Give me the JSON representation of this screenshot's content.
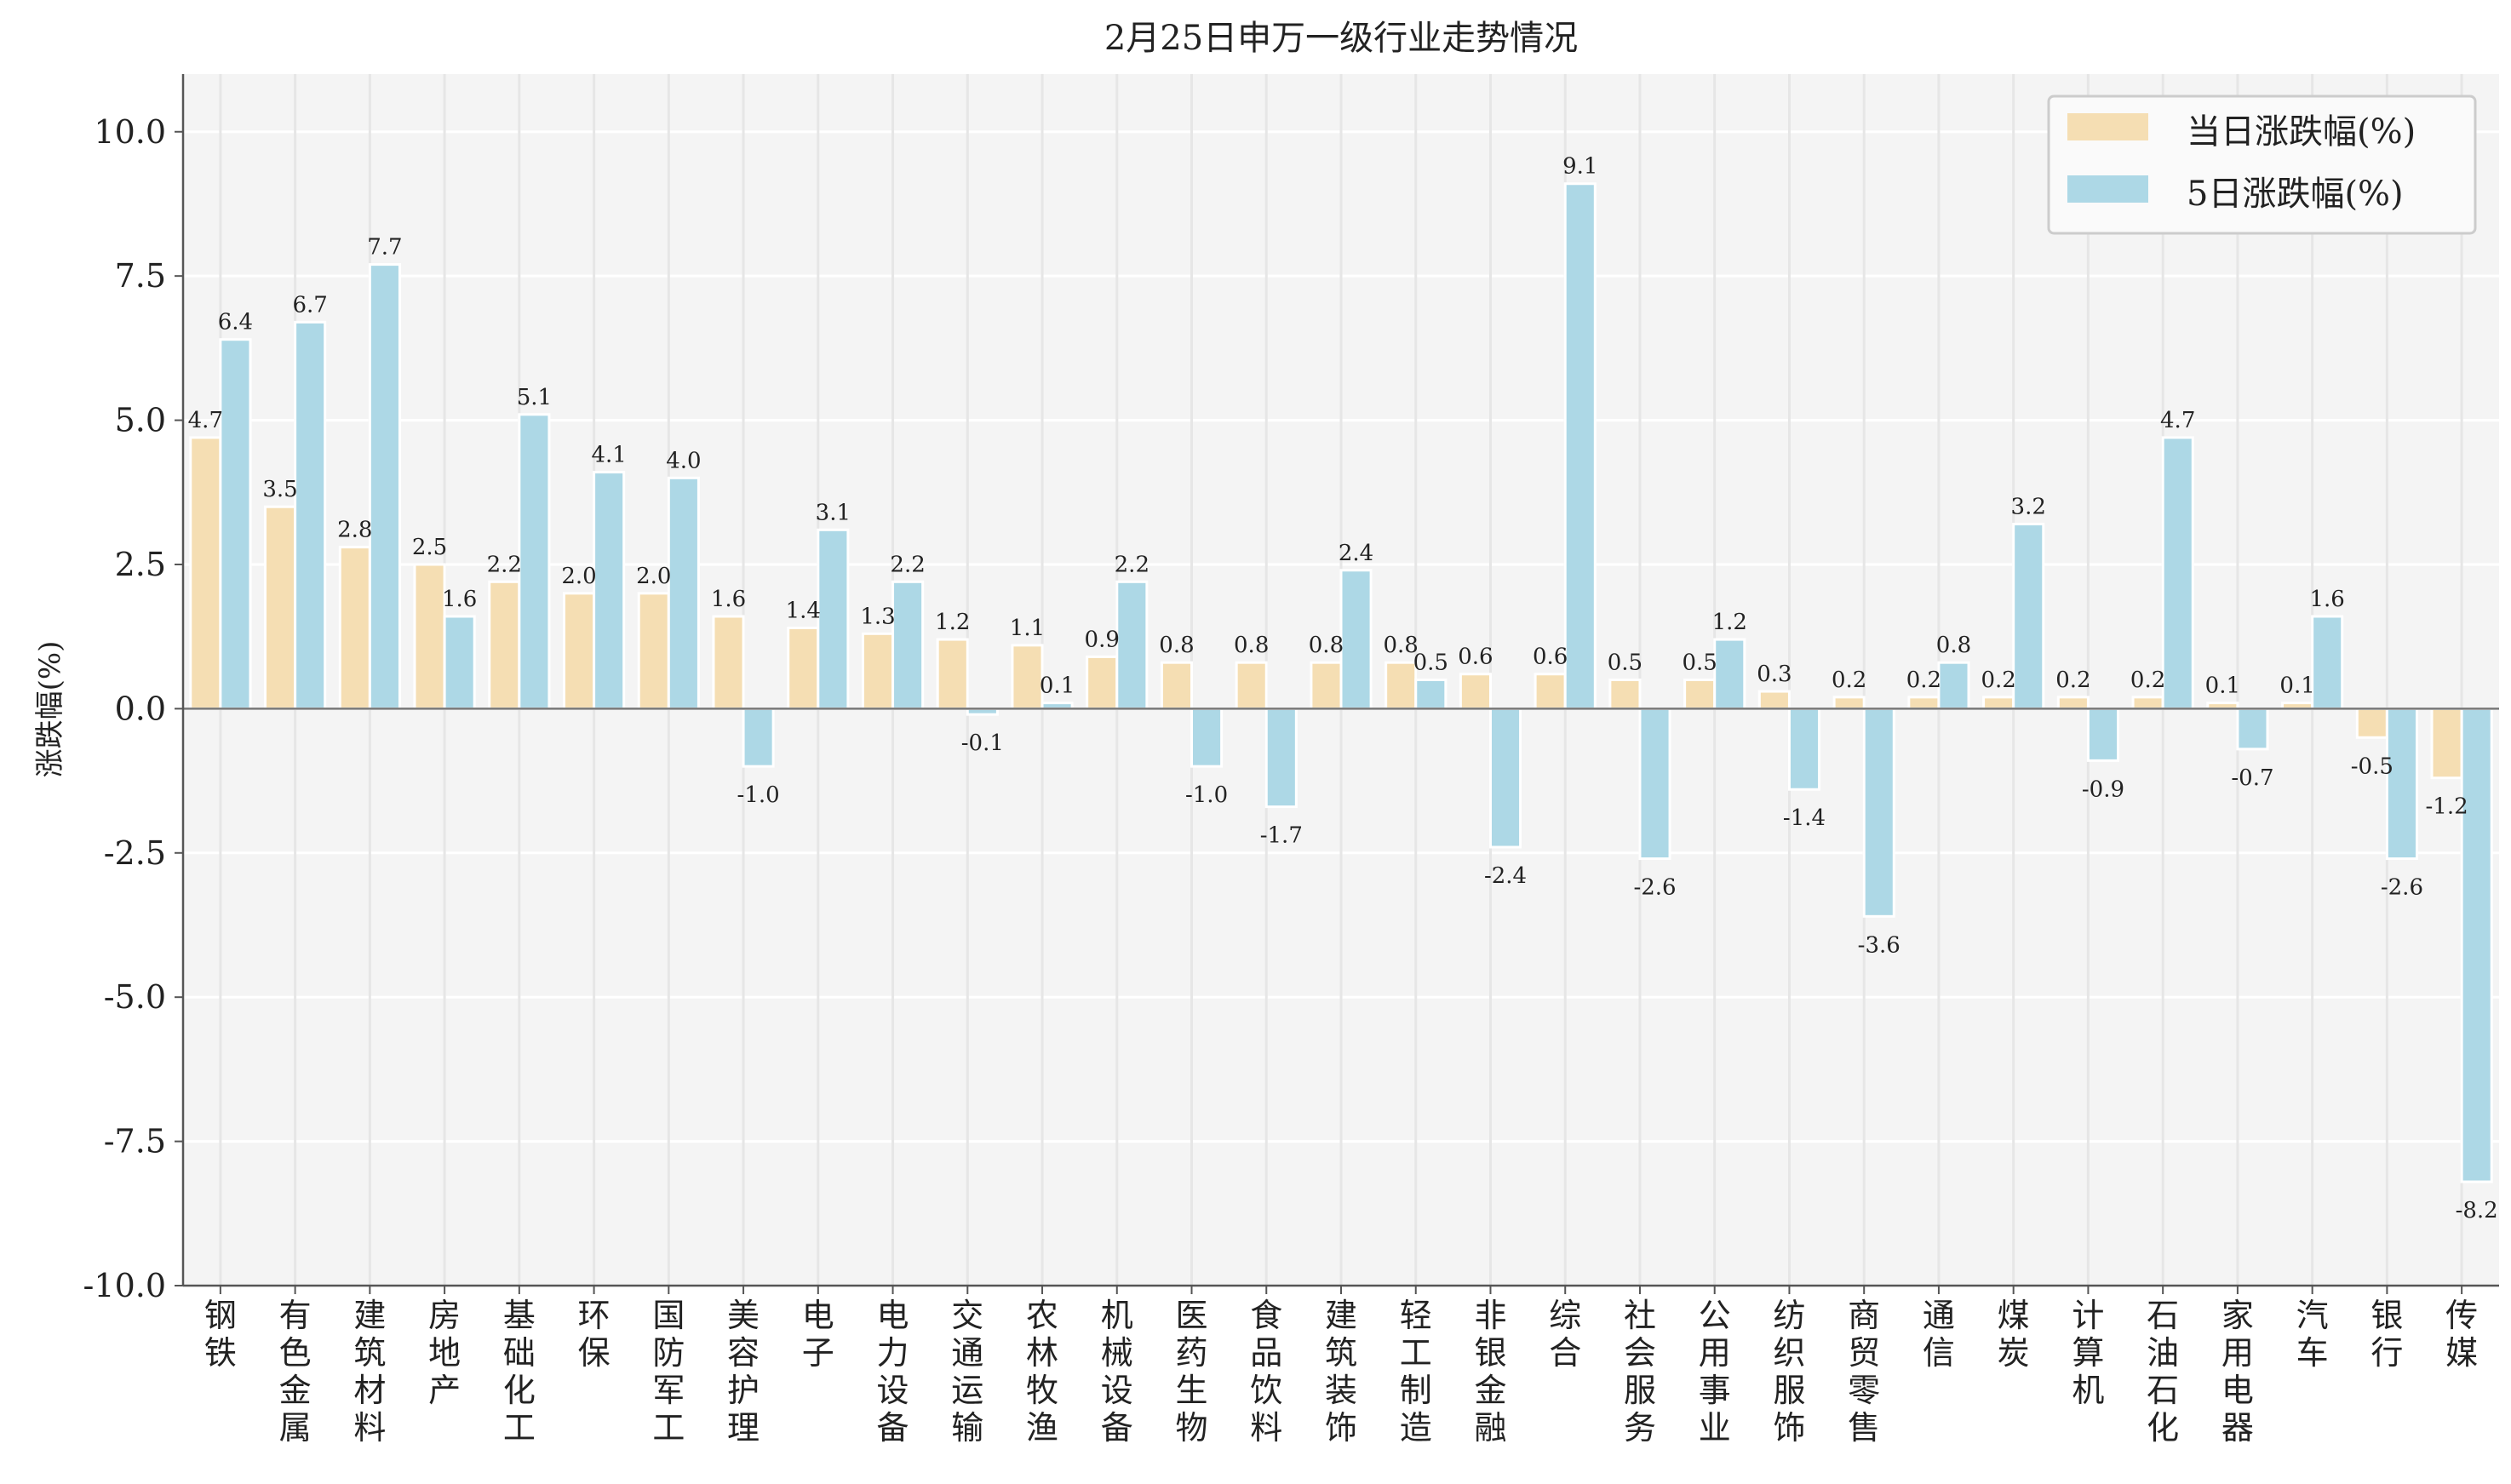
{
  "chart_data": {
    "type": "bar",
    "title": "2月25日申万一级行业走势情况",
    "xlabel": "",
    "ylabel": "涨跌幅(%)",
    "ylim": [
      -10,
      11
    ],
    "yticks": [
      -10.0,
      -7.5,
      -5.0,
      -2.5,
      0.0,
      2.5,
      5.0,
      7.5,
      10.0
    ],
    "ytick_labels": [
      "-10.0",
      "-7.5",
      "-5.0",
      "-2.5",
      "0.0",
      "2.5",
      "5.0",
      "7.5",
      "10.0"
    ],
    "grid": true,
    "legend_position": "top-right",
    "categories": [
      "钢铁",
      "有色金属",
      "建筑材料",
      "房地产",
      "基础化工",
      "环保",
      "国防军工",
      "美容护理",
      "电子",
      "电力设备",
      "交通运输",
      "农林牧渔",
      "机械设备",
      "医药生物",
      "食品饮料",
      "建筑装饰",
      "轻工制造",
      "非银金融",
      "综合",
      "社会服务",
      "公用事业",
      "纺织服饰",
      "商贸零售",
      "通信",
      "煤炭",
      "计算机",
      "石油石化",
      "家用电器",
      "汽车",
      "银行",
      "传媒"
    ],
    "series": [
      {
        "name": "当日涨跌幅(%)",
        "color": "#f5deb3",
        "values": [
          4.7,
          3.5,
          2.8,
          2.5,
          2.2,
          2.0,
          2.0,
          1.6,
          1.4,
          1.3,
          1.2,
          1.1,
          0.9,
          0.8,
          0.8,
          0.8,
          0.8,
          0.6,
          0.6,
          0.5,
          0.5,
          0.3,
          0.2,
          0.2,
          0.2,
          0.2,
          0.2,
          0.1,
          0.1,
          -0.5,
          -1.2
        ]
      },
      {
        "name": "5日涨跌幅(%)",
        "color": "#add8e6",
        "values": [
          6.4,
          6.7,
          7.7,
          1.6,
          5.1,
          4.1,
          4.0,
          -1.0,
          3.1,
          2.2,
          -0.1,
          0.1,
          2.2,
          -1.0,
          -1.7,
          2.4,
          0.5,
          -2.4,
          9.1,
          -2.6,
          1.2,
          -1.4,
          -3.6,
          0.8,
          3.2,
          -0.9,
          4.7,
          -0.7,
          1.6,
          -2.6,
          -8.2
        ]
      }
    ]
  }
}
